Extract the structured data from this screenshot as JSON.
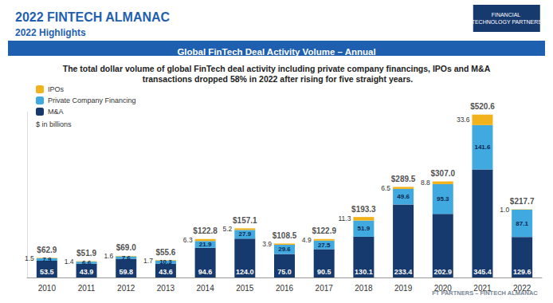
{
  "header": {
    "title": "2022 FINTECH ALMANAC",
    "subtitle": "2022 Highlights",
    "logo": "FINANCIAL TECHNOLOGY PARTNERS"
  },
  "footer": "FT PARTNERS – FINTECH ALMANAC",
  "chart_data": {
    "type": "bar",
    "title": "Global FinTech Deal Activity Volume – Annual",
    "subtitle": "The total dollar volume of global FinTech deal activity including private company financings, IPOs and M&A transactions dropped 58% in 2022 after rising for five straight years.",
    "unit_note": "$ in billions",
    "categories": [
      "2010",
      "2011",
      "2012",
      "2013",
      "2014",
      "2015",
      "2016",
      "2017",
      "2018",
      "2019",
      "2020",
      "2021",
      "2022"
    ],
    "series": [
      {
        "name": "IPOs",
        "color": "#f2b21b",
        "values": [
          1.5,
          1.4,
          1.6,
          1.7,
          6.3,
          5.2,
          3.9,
          4.9,
          11.3,
          6.5,
          8.8,
          33.6,
          1.0
        ],
        "value_labels": [
          "1.5",
          "1.4",
          "1.6",
          "1.7",
          "6.3",
          "5.2",
          "3.9",
          "4.9",
          "11.3",
          "6.5",
          "8.8",
          "33.6",
          "1.0"
        ]
      },
      {
        "name": "Private Company Financing",
        "color": "#3fa9e0",
        "values": [
          7.9,
          6.6,
          7.6,
          10.3,
          21.9,
          27.9,
          29.6,
          27.5,
          51.9,
          49.6,
          95.3,
          141.6,
          87.1
        ],
        "value_labels": [
          "7.9",
          "6.6",
          "7.6",
          "10.3",
          "21.9",
          "27.9",
          "29.6",
          "27.5",
          "51.9",
          "49.6",
          "95.3",
          "141.6",
          "87.1"
        ]
      },
      {
        "name": "M&A",
        "color": "#173a6e",
        "values": [
          53.5,
          43.9,
          59.8,
          43.6,
          94.6,
          124.0,
          75.0,
          90.5,
          130.1,
          233.4,
          202.9,
          345.4,
          129.6
        ],
        "value_labels": [
          "53.5",
          "43.9",
          "59.8",
          "43.6",
          "94.6",
          "124.0",
          "75.0",
          "90.5",
          "130.1",
          "233.4",
          "202.9",
          "345.4",
          "129.6"
        ]
      }
    ],
    "totals": [
      62.9,
      51.9,
      69.0,
      55.6,
      122.8,
      157.1,
      108.5,
      122.9,
      193.3,
      289.5,
      307.0,
      520.6,
      217.7
    ],
    "total_labels": [
      "$62.9",
      "$51.9",
      "$69.0",
      "$55.6",
      "$122.8",
      "$157.1",
      "$108.5",
      "$122.9",
      "$193.3",
      "$289.5",
      "$307.0",
      "$520.6",
      "$217.7"
    ],
    "ylim": [
      0,
      530
    ],
    "stacked": true,
    "data_labels": true,
    "legend": "top-left",
    "tick_labels": "x",
    "grid": false
  }
}
